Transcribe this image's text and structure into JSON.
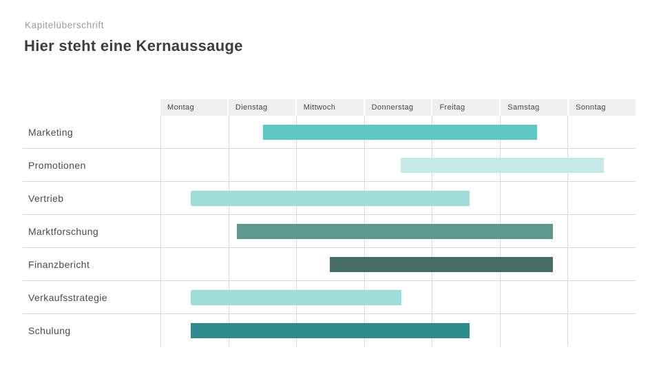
{
  "header": {
    "eyebrow": "Kapitelüberschrift",
    "title": "Hier steht eine Kernaussauge"
  },
  "chart_data": {
    "type": "gantt",
    "title": "Hier steht eine Kernaussauge",
    "columns": [
      "Montag",
      "Dienstag",
      "Mittwoch",
      "Donnerstag",
      "Freitag",
      "Samstag",
      "Sonntag"
    ],
    "axis_range_days": [
      0,
      7
    ],
    "grid": true,
    "rows": [
      {
        "label": "Marketing",
        "start_day": 1.51,
        "end_day": 5.55,
        "color": "#5FC9C7"
      },
      {
        "label": "Promotionen",
        "start_day": 3.54,
        "end_day": 6.53,
        "color": "#C4E9E6"
      },
      {
        "label": "Vertrieb",
        "start_day": 0.45,
        "end_day": 4.56,
        "color": "#9EDDD9"
      },
      {
        "label": "Marktforschung",
        "start_day": 1.13,
        "end_day": 5.78,
        "color": "#5F998D"
      },
      {
        "label": "Finanzbericht",
        "start_day": 2.5,
        "end_day": 5.78,
        "color": "#476F66"
      },
      {
        "label": "Verkaufsstrategie",
        "start_day": 0.45,
        "end_day": 3.55,
        "color": "#9EDDD9"
      },
      {
        "label": "Schulung",
        "start_day": 0.45,
        "end_day": 4.56,
        "color": "#2E8B8B"
      }
    ]
  },
  "colors": {
    "header_row_bg": "#EFEFEF",
    "grid_line": "#D8D8D8",
    "eyebrow_text": "#9B9B9B",
    "title_text": "#3D3D3D",
    "label_text": "#4A4A4A"
  }
}
